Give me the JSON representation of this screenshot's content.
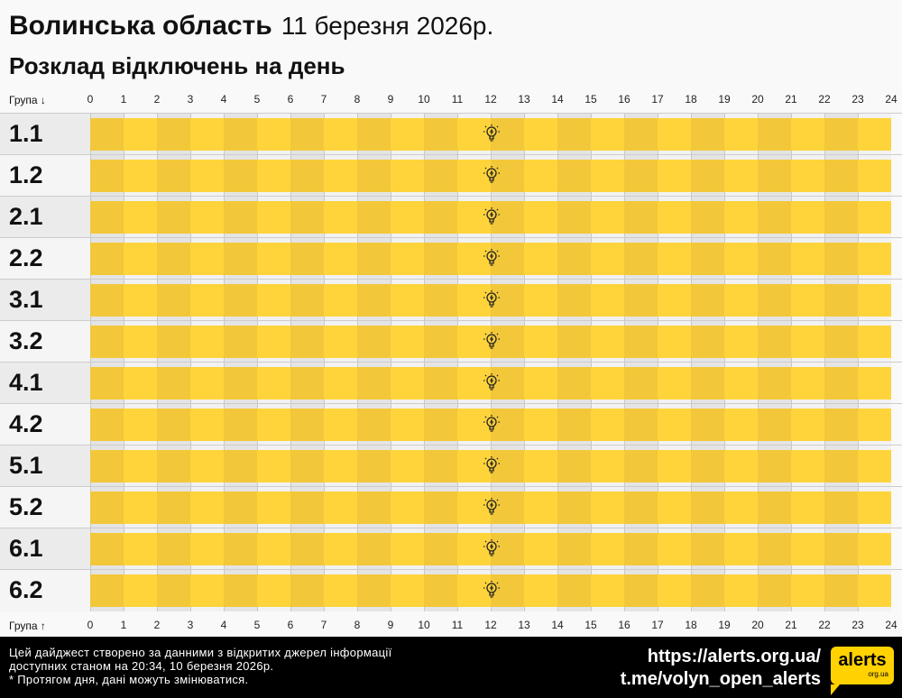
{
  "header": {
    "region": "Волинська область",
    "date": "11 березня 2026р.",
    "subtitle": "Розклад відключень на день"
  },
  "axis": {
    "top_label": "Група ↓",
    "bottom_label": "Група ↑",
    "hours": [
      "0",
      "1",
      "2",
      "3",
      "4",
      "5",
      "6",
      "7",
      "8",
      "9",
      "10",
      "11",
      "12",
      "13",
      "14",
      "15",
      "16",
      "17",
      "18",
      "19",
      "20",
      "21",
      "22",
      "23",
      "24"
    ]
  },
  "colors": {
    "bar_even": "#f2c83a",
    "bar_odd": "#ffd43b",
    "col_even": "#e4e4e4",
    "col_odd": "#f2f2f2",
    "label_even": "#ebebeb",
    "label_odd": "#f5f5f5"
  },
  "rows": [
    {
      "group": "1.1",
      "icon": "lightbulb-icon"
    },
    {
      "group": "1.2",
      "icon": "lightbulb-icon"
    },
    {
      "group": "2.1",
      "icon": "lightbulb-icon"
    },
    {
      "group": "2.2",
      "icon": "lightbulb-icon"
    },
    {
      "group": "3.1",
      "icon": "lightbulb-icon"
    },
    {
      "group": "3.2",
      "icon": "lightbulb-icon"
    },
    {
      "group": "4.1",
      "icon": "lightbulb-icon"
    },
    {
      "group": "4.2",
      "icon": "lightbulb-icon"
    },
    {
      "group": "5.1",
      "icon": "lightbulb-icon"
    },
    {
      "group": "5.2",
      "icon": "lightbulb-icon"
    },
    {
      "group": "6.1",
      "icon": "lightbulb-icon"
    },
    {
      "group": "6.2",
      "icon": "lightbulb-icon"
    }
  ],
  "footer": {
    "note1": "Цей дайджест створено за данними з відкритих джерел інформації",
    "note2": "доступних станом на 20:34, 10 березня 2026р.",
    "note3": "* Протягом дня, дані можуть змінюватися.",
    "link1": "https://alerts.org.ua/",
    "link2": "t.me/volyn_open_alerts",
    "logo_main": "alerts",
    "logo_sub": "org.ua"
  }
}
